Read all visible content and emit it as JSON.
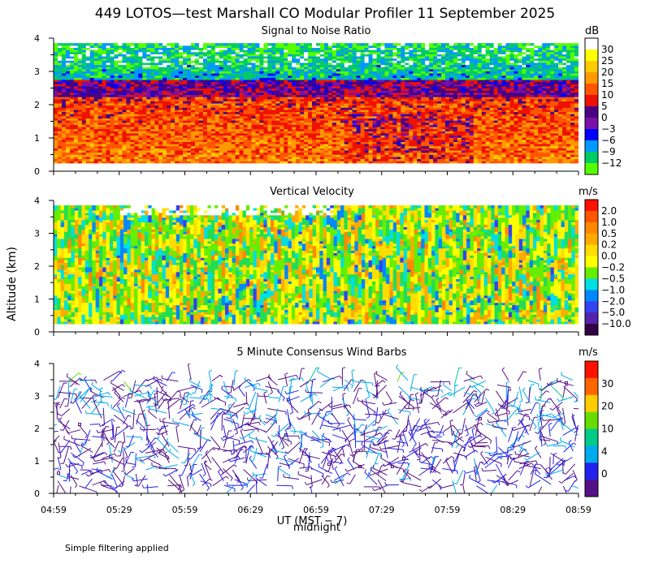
{
  "title": "449 LOTOS—test Marshall CO Modular Profiler 11 September 2025",
  "footnote": "Simple filtering applied",
  "chart_data": [
    {
      "type": "heatmap",
      "title": "Signal to Noise Ratio",
      "ylabel": "",
      "ylim": [
        0,
        4
      ],
      "yticks": [
        "0",
        "1",
        "2",
        "3",
        "4"
      ],
      "colorbar": {
        "unit": "dB",
        "labels": [
          "30",
          "25",
          "20",
          "15",
          "10",
          "5",
          "0",
          "−3",
          "−6",
          "−9",
          "−12"
        ],
        "colors": [
          "#ffffff",
          "#ffff00",
          "#ffcc00",
          "#ff9900",
          "#ff5500",
          "#ee1100",
          "#4b0082",
          "#7a10a8",
          "#0000ff",
          "#0099ff",
          "#00cc66",
          "#55ff00"
        ]
      }
    },
    {
      "type": "heatmap",
      "title": "Vertical Velocity",
      "ylabel": "Altitude (km)",
      "ylim": [
        0,
        4
      ],
      "yticks": [
        "0",
        "1",
        "2",
        "3",
        "4"
      ],
      "colorbar": {
        "unit": "m/s",
        "labels": [
          "2.0",
          "1.0",
          "0.5",
          "0.2",
          "0.0",
          "−0.2",
          "−0.5",
          "−1.0",
          "−2.0",
          "−5.0",
          "−10.0"
        ],
        "colors": [
          "#ff1100",
          "#ff5500",
          "#ff8800",
          "#ffaa00",
          "#ffdd00",
          "#ffff00",
          "#66ee00",
          "#00e0e0",
          "#0088ff",
          "#3344ee",
          "#5522aa",
          "#330044"
        ]
      }
    },
    {
      "type": "scatter",
      "title": "5 Minute Consensus Wind Barbs",
      "ylabel": "",
      "ylim": [
        0,
        4
      ],
      "yticks": [
        "0",
        "1",
        "2",
        "3",
        "4"
      ],
      "colorbar": {
        "unit": "m/s",
        "labels": [
          "30",
          "20",
          "10",
          "4",
          "0"
        ],
        "colors": [
          "#ff1100",
          "#ff6600",
          "#ffcc00",
          "#66dd00",
          "#00cc88",
          "#00aaee",
          "#2222ee",
          "#551188"
        ]
      }
    }
  ],
  "xaxis": {
    "ticks": [
      "04:59",
      "05:29",
      "05:59",
      "06:29",
      "06:59",
      "07:29",
      "07:59",
      "08:29",
      "08:59"
    ],
    "label": "UT (MST − 7)",
    "annotation": "midnight"
  }
}
